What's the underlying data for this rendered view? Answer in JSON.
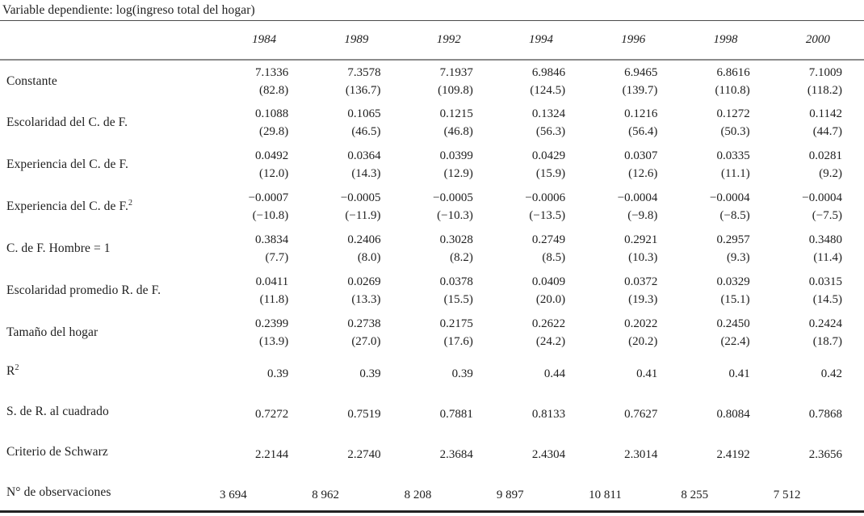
{
  "title": "Variable dependiente: log(ingreso total del hogar)",
  "colors": {
    "ink": "#1e1e1e",
    "rule_dark": "#4a4a4a",
    "rule_gray": "#8c8c8c",
    "rule_bottom": "#222222",
    "background": "#ffffff"
  },
  "table": {
    "years": [
      "1984",
      "1989",
      "1992",
      "1994",
      "1996",
      "1998",
      "2000"
    ],
    "rows": [
      {
        "type": "pair",
        "label": "Constante",
        "values": [
          "7.1336",
          "7.3578",
          "7.1937",
          "6.9846",
          "6.9465",
          "6.8616",
          "7.1009"
        ],
        "tstats": [
          "(82.8)",
          "(136.7)",
          "(109.8)",
          "(124.5)",
          "(139.7)",
          "(110.8)",
          "(118.2)"
        ]
      },
      {
        "type": "pair",
        "label": "Escolaridad del C. de F.",
        "values": [
          "0.1088",
          "0.1065",
          "0.1215",
          "0.1324",
          "0.1216",
          "0.1272",
          "0.1142"
        ],
        "tstats": [
          "(29.8)",
          "(46.5)",
          "(46.8)",
          "(56.3)",
          "(56.4)",
          "(50.3)",
          "(44.7)"
        ]
      },
      {
        "type": "pair",
        "label": "Experiencia del C. de F.",
        "values": [
          "0.0492",
          "0.0364",
          "0.0399",
          "0.0429",
          "0.0307",
          "0.0335",
          "0.0281"
        ],
        "tstats": [
          "(12.0)",
          "(14.3)",
          "(12.9)",
          "(15.9)",
          "(12.6)",
          "(11.1)",
          "(9.2)"
        ]
      },
      {
        "type": "pair",
        "label": "Experiencia del C. de F.",
        "label_sup": "2",
        "values": [
          "−0.0007",
          "−0.0005",
          "−0.0005",
          "−0.0006",
          "−0.0004",
          "−0.0004",
          "−0.0004"
        ],
        "tstats": [
          "(−10.8)",
          "(−11.9)",
          "(−10.3)",
          "(−13.5)",
          "(−9.8)",
          "(−8.5)",
          "(−7.5)"
        ]
      },
      {
        "type": "pair",
        "label": "C. de F. Hombre = 1",
        "values": [
          "0.3834",
          "0.2406",
          "0.3028",
          "0.2749",
          "0.2921",
          "0.2957",
          "0.3480"
        ],
        "tstats": [
          "(7.7)",
          "(8.0)",
          "(8.2)",
          "(8.5)",
          "(10.3)",
          "(9.3)",
          "(11.4)"
        ]
      },
      {
        "type": "pair",
        "label": "Escolaridad promedio R. de F.",
        "values": [
          "0.0411",
          "0.0269",
          "0.0378",
          "0.0409",
          "0.0372",
          "0.0329",
          "0.0315"
        ],
        "tstats": [
          "(11.8)",
          "(13.3)",
          "(15.5)",
          "(20.0)",
          "(19.3)",
          "(15.1)",
          "(14.5)"
        ]
      },
      {
        "type": "pair",
        "label": "Tamaño del hogar",
        "values": [
          "0.2399",
          "0.2738",
          "0.2175",
          "0.2622",
          "0.2022",
          "0.2450",
          "0.2424"
        ],
        "tstats": [
          "(13.9)",
          "(27.0)",
          "(17.6)",
          "(24.2)",
          "(20.2)",
          "(22.4)",
          "(18.7)"
        ]
      },
      {
        "type": "single",
        "label": "R",
        "label_sup": "2",
        "values": [
          "0.39",
          "0.39",
          "0.39",
          "0.44",
          "0.41",
          "0.41",
          "0.42"
        ]
      },
      {
        "type": "single",
        "label": "S. de R. al cuadrado",
        "values": [
          "0.7272",
          "0.7519",
          "0.7881",
          "0.8133",
          "0.7627",
          "0.8084",
          "0.7868"
        ]
      },
      {
        "type": "single",
        "label": "Criterio de Schwarz",
        "values": [
          "2.2144",
          "2.2740",
          "2.3684",
          "2.4304",
          "2.3014",
          "2.4192",
          "2.3656"
        ]
      },
      {
        "type": "obs",
        "label": "N° de observaciones",
        "values": [
          "3 694",
          "8 962",
          "8 208",
          "9 897",
          "10 811",
          "8 255",
          "7 512"
        ]
      }
    ]
  }
}
